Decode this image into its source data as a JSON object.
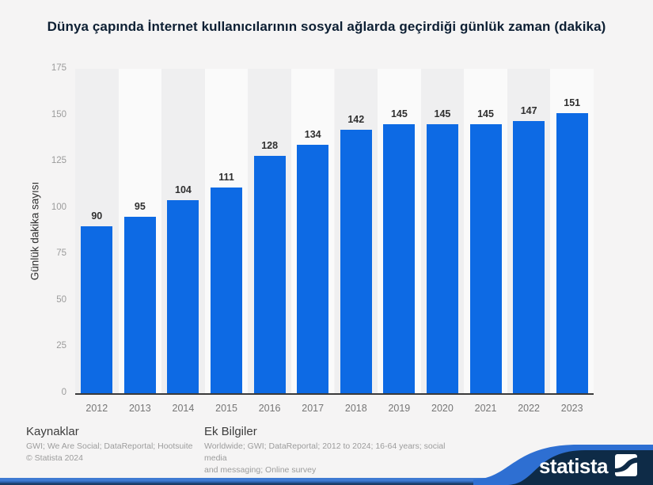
{
  "title": "Dünya çapında İnternet kullanıcılarının sosyal ağlarda geçirdiği günlük zaman (dakika)",
  "chart_data": {
    "type": "bar",
    "categories": [
      "2012",
      "2013",
      "2014",
      "2015",
      "2016",
      "2017",
      "2018",
      "2019",
      "2020",
      "2021",
      "2022",
      "2023"
    ],
    "values": [
      90,
      95,
      104,
      111,
      128,
      134,
      142,
      145,
      145,
      145,
      147,
      151
    ],
    "title": "Dünya çapında İnternet kullanıcılarının sosyal ağlarda geçirdiği günlük zaman (dakika)",
    "xlabel": "",
    "ylabel": "Günlük dakika sayısı",
    "ylim": [
      0,
      175
    ],
    "yticks": [
      0,
      25,
      50,
      75,
      100,
      125,
      150,
      175
    ],
    "grid": "horizontal dotted",
    "legend": "none",
    "value_labels": true,
    "bar_color": "#0d6ae4",
    "column_shade_even": "#efeff0",
    "column_shade_odd": "#fafafa"
  },
  "footer": {
    "sources_heading": "Kaynaklar",
    "sources_line1": "GWI; We Are Social; DataReportal; Hootsuite",
    "sources_line2": "© Statista 2024",
    "info_heading": "Ek Bilgiler",
    "info_line1": "Worldwide; GWI; DataReportal; 2012 to 2024; 16-64 years; social media",
    "info_line2": "and messaging; Online survey"
  },
  "branding": {
    "logo_text": "statista",
    "navy": "#0e2b47",
    "swoosh_blue": "#2e6fd2"
  }
}
